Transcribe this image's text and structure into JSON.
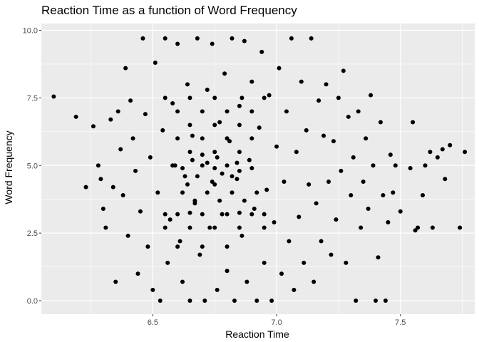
{
  "chart_data": {
    "type": "scatter",
    "title": "Reaction Time as a function of Word Frequency",
    "xlabel": "Reaction Time",
    "ylabel": "Word Frequency",
    "xlim": [
      6.05,
      7.8
    ],
    "ylim": [
      -0.5,
      10.25
    ],
    "x_ticks": [
      6.5,
      7.0,
      7.5
    ],
    "x_tick_labels": [
      "6.5",
      "7.0",
      "7.5"
    ],
    "y_ticks": [
      0.0,
      2.5,
      5.0,
      7.5,
      10.0
    ],
    "y_tick_labels": [
      "0.0",
      "2.5",
      "5.0",
      "7.5",
      "10.0"
    ],
    "grid": true,
    "background": "#ebebeb",
    "grid_color": "#ffffff",
    "point_color": "#000000",
    "points": [
      [
        6.1,
        7.55
      ],
      [
        6.19,
        6.8
      ],
      [
        6.23,
        4.2
      ],
      [
        6.26,
        6.45
      ],
      [
        6.28,
        5.0
      ],
      [
        6.29,
        4.5
      ],
      [
        6.3,
        3.4
      ],
      [
        6.31,
        2.7
      ],
      [
        6.33,
        6.7
      ],
      [
        6.34,
        4.2
      ],
      [
        6.35,
        0.7
      ],
      [
        6.36,
        7.0
      ],
      [
        6.37,
        5.6
      ],
      [
        6.38,
        3.9
      ],
      [
        6.39,
        8.6
      ],
      [
        6.4,
        2.4
      ],
      [
        6.41,
        7.4
      ],
      [
        6.42,
        6.0
      ],
      [
        6.43,
        4.8
      ],
      [
        6.44,
        1.0
      ],
      [
        6.45,
        3.3
      ],
      [
        6.46,
        9.7
      ],
      [
        6.47,
        6.9
      ],
      [
        6.48,
        2.0
      ],
      [
        6.49,
        5.3
      ],
      [
        6.5,
        0.4
      ],
      [
        6.51,
        8.8
      ],
      [
        6.52,
        4.0
      ],
      [
        6.53,
        0.0
      ],
      [
        6.54,
        6.3
      ],
      [
        6.55,
        9.7
      ],
      [
        6.56,
        1.4
      ],
      [
        6.57,
        3.0
      ],
      [
        6.58,
        7.3
      ],
      [
        6.59,
        5.0
      ],
      [
        6.6,
        9.5
      ],
      [
        6.61,
        2.2
      ],
      [
        6.62,
        0.7
      ],
      [
        6.63,
        4.6
      ],
      [
        6.64,
        8.0
      ],
      [
        6.65,
        0.0
      ],
      [
        6.66,
        6.1
      ],
      [
        6.67,
        3.6
      ],
      [
        6.68,
        9.7
      ],
      [
        6.69,
        1.7
      ],
      [
        6.7,
        5.4
      ],
      [
        6.71,
        0.0
      ],
      [
        6.72,
        7.8
      ],
      [
        6.73,
        2.7
      ],
      [
        6.74,
        9.5
      ],
      [
        6.75,
        4.3
      ],
      [
        6.76,
        0.4
      ],
      [
        6.77,
        6.6
      ],
      [
        6.78,
        3.2
      ],
      [
        6.79,
        8.4
      ],
      [
        6.8,
        1.1
      ],
      [
        6.81,
        5.9
      ],
      [
        6.82,
        9.7
      ],
      [
        6.83,
        0.0
      ],
      [
        6.84,
        4.5
      ],
      [
        6.85,
        7.2
      ],
      [
        6.86,
        2.4
      ],
      [
        6.87,
        9.6
      ],
      [
        6.88,
        0.7
      ],
      [
        6.89,
        5.2
      ],
      [
        6.9,
        8.1
      ],
      [
        6.91,
        3.4
      ],
      [
        6.92,
        0.0
      ],
      [
        6.93,
        6.4
      ],
      [
        6.94,
        9.2
      ],
      [
        6.95,
        1.4
      ],
      [
        6.96,
        4.1
      ],
      [
        6.97,
        7.6
      ],
      [
        6.98,
        0.0
      ],
      [
        6.99,
        2.9
      ],
      [
        7.0,
        5.7
      ],
      [
        7.01,
        8.6
      ],
      [
        7.02,
        1.0
      ],
      [
        7.03,
        4.4
      ],
      [
        7.04,
        7.0
      ],
      [
        7.05,
        2.2
      ],
      [
        7.06,
        9.7
      ],
      [
        7.07,
        0.4
      ],
      [
        7.08,
        5.5
      ],
      [
        7.09,
        3.1
      ],
      [
        7.1,
        8.1
      ],
      [
        7.11,
        1.4
      ],
      [
        7.12,
        6.3
      ],
      [
        7.13,
        4.3
      ],
      [
        7.14,
        9.7
      ],
      [
        7.15,
        0.7
      ],
      [
        7.16,
        3.6
      ],
      [
        7.17,
        7.4
      ],
      [
        7.18,
        2.2
      ],
      [
        7.19,
        6.1
      ],
      [
        7.2,
        8.0
      ],
      [
        7.21,
        4.4
      ],
      [
        7.22,
        1.7
      ],
      [
        7.23,
        5.9
      ],
      [
        7.24,
        3.0
      ],
      [
        7.25,
        7.5
      ],
      [
        7.26,
        4.8
      ],
      [
        7.27,
        8.5
      ],
      [
        7.28,
        1.4
      ],
      [
        7.29,
        6.8
      ],
      [
        7.3,
        3.9
      ],
      [
        7.31,
        5.3
      ],
      [
        7.32,
        0.0
      ],
      [
        7.33,
        7.0
      ],
      [
        7.34,
        2.7
      ],
      [
        7.35,
        4.4
      ],
      [
        7.36,
        6.0
      ],
      [
        7.37,
        3.4
      ],
      [
        7.38,
        7.6
      ],
      [
        7.39,
        5.0
      ],
      [
        7.4,
        0.0
      ],
      [
        7.41,
        1.6
      ],
      [
        7.42,
        6.6
      ],
      [
        7.43,
        3.9
      ],
      [
        7.44,
        0.0
      ],
      [
        7.45,
        2.9
      ],
      [
        7.46,
        5.4
      ],
      [
        7.47,
        4.0
      ],
      [
        7.48,
        5.0
      ],
      [
        7.5,
        3.3
      ],
      [
        7.54,
        4.9
      ],
      [
        7.55,
        6.6
      ],
      [
        7.56,
        2.6
      ],
      [
        7.57,
        2.7
      ],
      [
        7.59,
        3.9
      ],
      [
        7.6,
        5.0
      ],
      [
        7.62,
        5.5
      ],
      [
        7.63,
        2.7
      ],
      [
        7.65,
        5.3
      ],
      [
        7.67,
        5.6
      ],
      [
        7.68,
        4.5
      ],
      [
        7.7,
        5.75
      ],
      [
        7.74,
        2.7
      ],
      [
        7.76,
        5.5
      ],
      [
        6.86,
        7.5
      ],
      [
        6.75,
        7.5
      ],
      [
        6.65,
        7.5
      ],
      [
        6.55,
        7.5
      ],
      [
        6.95,
        7.5
      ],
      [
        6.7,
        5.0
      ],
      [
        6.8,
        5.0
      ],
      [
        6.75,
        4.9
      ],
      [
        6.85,
        4.8
      ],
      [
        6.62,
        4.9
      ],
      [
        6.72,
        5.1
      ],
      [
        6.78,
        4.7
      ],
      [
        6.66,
        5.2
      ],
      [
        6.9,
        4.9
      ],
      [
        6.58,
        5.0
      ],
      [
        6.76,
        5.3
      ],
      [
        6.84,
        5.1
      ],
      [
        6.68,
        4.6
      ],
      [
        6.74,
        4.4
      ],
      [
        6.82,
        4.6
      ],
      [
        6.64,
        4.3
      ],
      [
        6.7,
        3.2
      ],
      [
        6.8,
        3.2
      ],
      [
        6.6,
        3.2
      ],
      [
        6.9,
        3.2
      ],
      [
        6.55,
        3.2
      ],
      [
        6.95,
        3.2
      ],
      [
        6.65,
        3.25
      ],
      [
        6.85,
        3.25
      ],
      [
        6.75,
        2.7
      ],
      [
        6.65,
        2.7
      ],
      [
        6.85,
        2.7
      ],
      [
        6.55,
        2.7
      ],
      [
        6.95,
        2.7
      ],
      [
        6.7,
        2.0
      ],
      [
        6.8,
        2.0
      ],
      [
        6.6,
        2.0
      ],
      [
        6.7,
        6.0
      ],
      [
        6.8,
        6.0
      ],
      [
        6.6,
        6.0
      ],
      [
        6.9,
        6.0
      ],
      [
        6.75,
        6.5
      ],
      [
        6.65,
        6.5
      ],
      [
        6.85,
        6.5
      ],
      [
        6.7,
        7.0
      ],
      [
        6.8,
        7.0
      ],
      [
        6.6,
        7.0
      ],
      [
        6.9,
        7.0
      ],
      [
        6.75,
        5.5
      ],
      [
        6.65,
        5.5
      ],
      [
        6.85,
        5.5
      ],
      [
        6.72,
        4.0
      ],
      [
        6.82,
        4.0
      ],
      [
        6.62,
        4.0
      ],
      [
        6.92,
        4.0
      ],
      [
        6.77,
        3.7
      ],
      [
        6.67,
        3.7
      ],
      [
        6.87,
        3.7
      ]
    ]
  }
}
